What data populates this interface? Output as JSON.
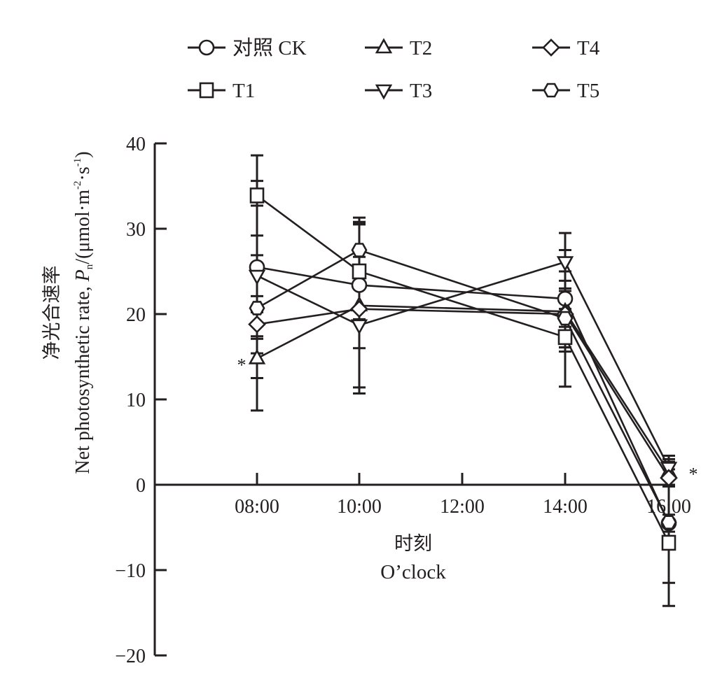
{
  "chart_data": {
    "type": "line",
    "title": "",
    "xlabel": [
      "时刻",
      "O’clock"
    ],
    "ylabel_cn": "净光合速率",
    "ylabel_en": "Net photosynthetic rate, ",
    "ylabel_symbol": "P",
    "ylabel_sub": "n",
    "ylabel_unit": "/(μmol·m",
    "ylabel_unit_sup1": "-2",
    "ylabel_unit_mid": "·s",
    "ylabel_unit_sup2": "-1",
    "ylabel_unit_end": ")",
    "x": [
      "08:00",
      "10:00",
      "12:00",
      "14:00",
      "16:00"
    ],
    "x_positions": [
      8,
      10,
      12,
      14,
      16
    ],
    "xlim": [
      6,
      16.1
    ],
    "ylim": [
      -20,
      40
    ],
    "yticks": [
      -20,
      -10,
      0,
      10,
      20,
      30,
      40
    ],
    "ytick_labels": [
      "−20",
      "−10",
      "0",
      "10",
      "20",
      "30",
      "40"
    ],
    "grid": false,
    "legend_position": "top",
    "series": [
      {
        "name": "对照 CK",
        "marker": "circle",
        "x": [
          8,
          10,
          14,
          16
        ],
        "values": [
          25.5,
          23.4,
          21.8,
          -4.5
        ],
        "errors": [
          10.1,
          7.4,
          1.2,
          1.0
        ]
      },
      {
        "name": "T1",
        "marker": "square",
        "x": [
          8,
          10,
          14,
          16
        ],
        "values": [
          33.9,
          25.0,
          17.3,
          -6.8
        ],
        "errors": [
          4.7,
          5.6,
          1.2,
          7.4
        ]
      },
      {
        "name": "T2",
        "marker": "triangle-up",
        "x": [
          8,
          10,
          14,
          16
        ],
        "values": [
          14.8,
          21.0,
          20.3,
          1.5
        ],
        "errors": [
          2.3,
          9.6,
          4.7,
          1.5
        ]
      },
      {
        "name": "T3",
        "marker": "triangle-down",
        "x": [
          8,
          10,
          14,
          16
        ],
        "values": [
          24.5,
          18.7,
          26.1,
          2.0
        ],
        "errors": [
          2.4,
          8.0,
          3.4,
          1.4
        ]
      },
      {
        "name": "T4",
        "marker": "diamond",
        "x": [
          8,
          10,
          14,
          16
        ],
        "values": [
          18.8,
          20.6,
          20.0,
          0.8
        ],
        "errors": [
          1.4,
          9.9,
          3.9,
          1.0
        ]
      },
      {
        "name": "T5",
        "marker": "hexagon",
        "x": [
          8,
          10,
          14,
          16
        ],
        "values": [
          20.7,
          27.5,
          19.5,
          -4.4
        ],
        "errors": [
          12.0,
          3.8,
          8.0,
          7.1
        ]
      }
    ],
    "annotations": [
      {
        "text": "*",
        "x": 8,
        "y": 14.8,
        "side": "left"
      },
      {
        "text": "*",
        "x": 16,
        "y": 2.0,
        "side": "right"
      }
    ]
  }
}
